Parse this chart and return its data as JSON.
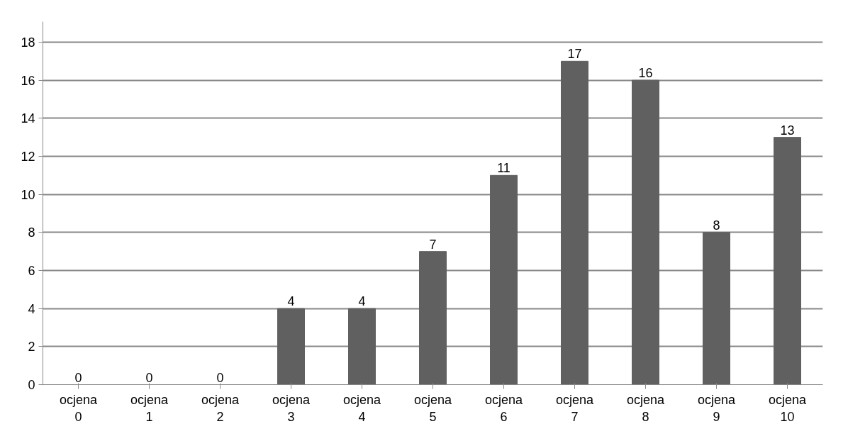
{
  "chart_data": {
    "type": "bar",
    "categories": [
      "ocjena 0",
      "ocjena 1",
      "ocjena 2",
      "ocjena 3",
      "ocjena 4",
      "ocjena 5",
      "ocjena 6",
      "ocjena 7",
      "ocjena 8",
      "ocjena 9",
      "ocjena 10"
    ],
    "values": [
      0,
      0,
      0,
      4,
      4,
      7,
      11,
      17,
      16,
      8,
      13
    ],
    "color": "#606060",
    "ylim": [
      0,
      18
    ],
    "yticks": [
      0,
      2,
      4,
      6,
      8,
      10,
      12,
      14,
      16,
      18
    ],
    "grid": "y",
    "data_labels": true
  }
}
